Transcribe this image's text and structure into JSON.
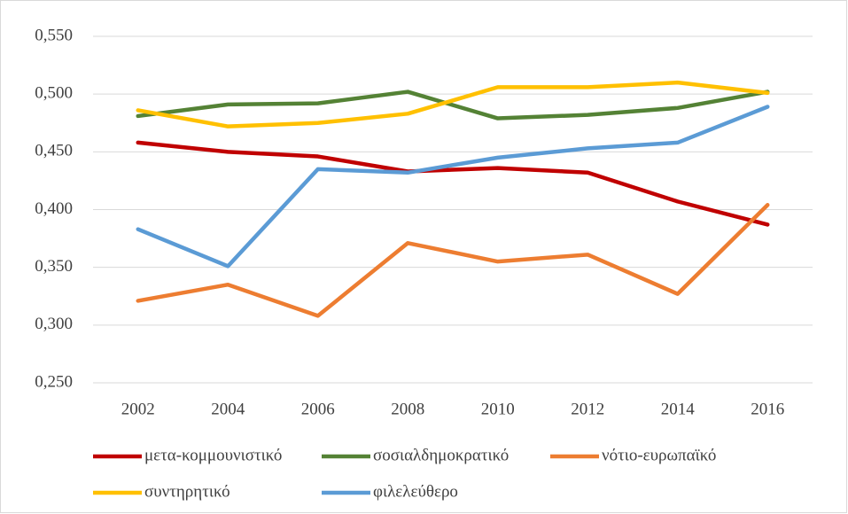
{
  "chart_data": {
    "type": "line",
    "categories": [
      "2002",
      "2004",
      "2006",
      "2008",
      "2010",
      "2012",
      "2014",
      "2016"
    ],
    "series": [
      {
        "name": "μετα-κομμουνιστικό",
        "color": "#c00000",
        "values": [
          0.458,
          0.45,
          0.446,
          0.433,
          0.436,
          0.432,
          0.407,
          0.387
        ]
      },
      {
        "name": "σοσιαλδημοκρατικό",
        "color": "#548235",
        "values": [
          0.481,
          0.491,
          0.492,
          0.502,
          0.479,
          0.482,
          0.488,
          0.502
        ]
      },
      {
        "name": "νότιο-ευρωπαϊκό",
        "color": "#ed7d31",
        "values": [
          0.321,
          0.335,
          0.308,
          0.371,
          0.355,
          0.361,
          0.327,
          0.404
        ]
      },
      {
        "name": "συντηρητικό",
        "color": "#ffc000",
        "values": [
          0.486,
          0.472,
          0.475,
          0.483,
          0.506,
          0.506,
          0.51,
          0.501
        ]
      },
      {
        "name": "φιλελεύθερο",
        "color": "#5b9bd5",
        "values": [
          0.383,
          0.351,
          0.435,
          0.432,
          0.445,
          0.453,
          0.458,
          0.489
        ]
      }
    ],
    "ylim": [
      0.25,
      0.55
    ],
    "yticks": [
      {
        "value": 0.25,
        "label": "0,250"
      },
      {
        "value": 0.3,
        "label": "0,300"
      },
      {
        "value": 0.35,
        "label": "0,350"
      },
      {
        "value": 0.4,
        "label": "0,400"
      },
      {
        "value": 0.45,
        "label": "0,450"
      },
      {
        "value": 0.5,
        "label": "0,500"
      },
      {
        "value": 0.55,
        "label": "0,550"
      }
    ],
    "grid": true,
    "legend": "bottom"
  }
}
